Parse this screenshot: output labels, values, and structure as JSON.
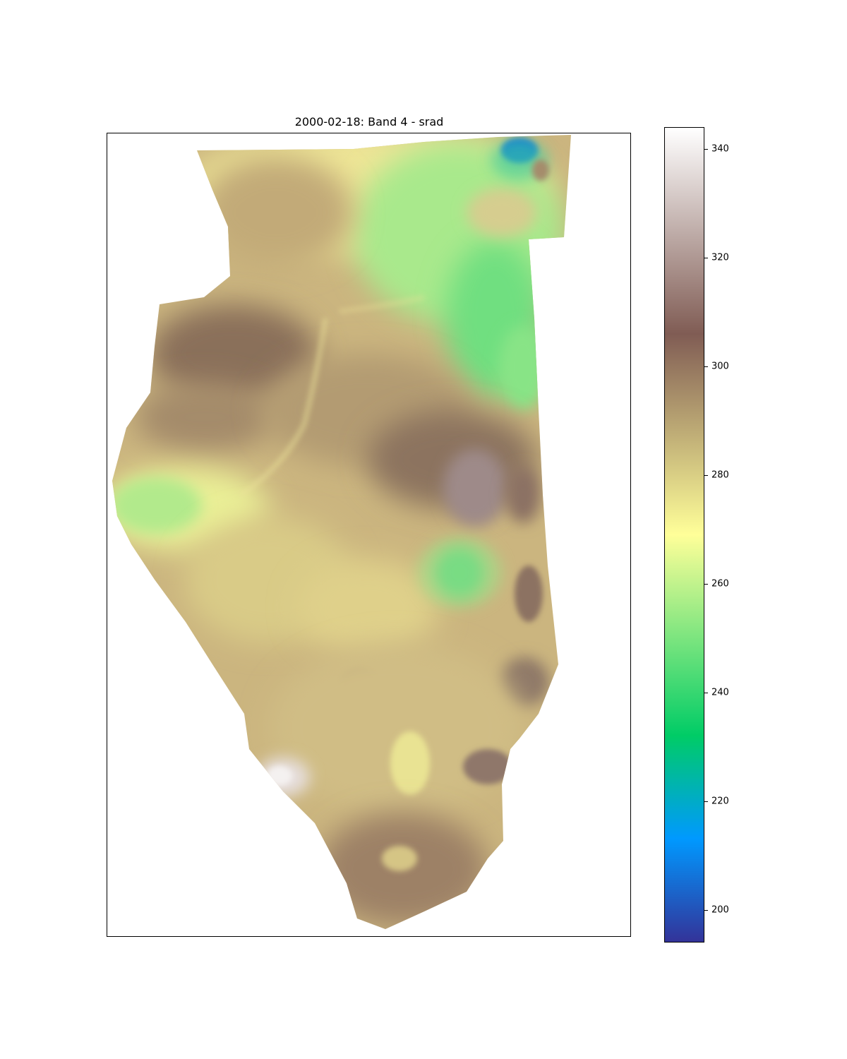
{
  "figure": {
    "title": "2000-02-18: Band 4 - srad"
  },
  "colorbar": {
    "colormap": "terrain",
    "vmin": 194,
    "vmax": 344,
    "ticks": [
      "200",
      "220",
      "240",
      "260",
      "280",
      "300",
      "320",
      "340"
    ],
    "tick_values": [
      200,
      220,
      240,
      260,
      280,
      300,
      320,
      340
    ],
    "stops": [
      {
        "value": 194,
        "color": "#333399"
      },
      {
        "value": 213,
        "color": "#0099ff"
      },
      {
        "value": 232,
        "color": "#00cc66"
      },
      {
        "value": 269,
        "color": "#ffff99"
      },
      {
        "value": 306,
        "color": "#805c54"
      },
      {
        "value": 344,
        "color": "#ffffff"
      }
    ]
  },
  "map": {
    "region": "Illinois",
    "background_color": "#ffffff",
    "base_color": "#cbb57f",
    "features": [
      {
        "name": "northeast-low",
        "value": 258
      },
      {
        "name": "lake-region-min",
        "value": 212
      },
      {
        "name": "central-west-high",
        "value": 303
      },
      {
        "name": "west-bulge-low",
        "value": 266
      },
      {
        "name": "east-central-peak",
        "value": 318
      },
      {
        "name": "southeast-low-spot",
        "value": 245
      },
      {
        "name": "southwest-max",
        "value": 338
      }
    ]
  }
}
